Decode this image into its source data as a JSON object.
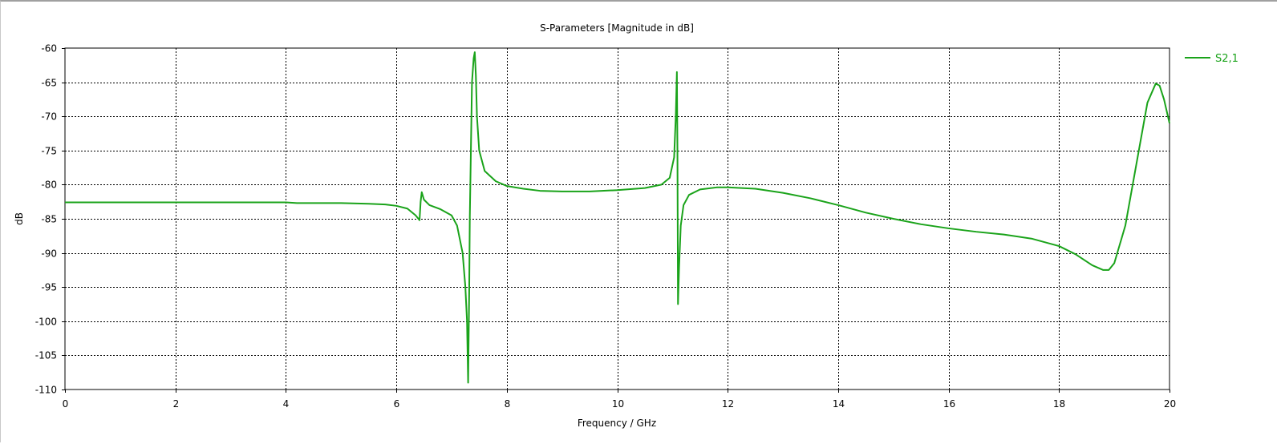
{
  "window": {
    "accent": "#1aa31a"
  },
  "chart_data": {
    "type": "line",
    "title": "S-Parameters [Magnitude in dB]",
    "xlabel": "Frequency / GHz",
    "ylabel": "dB",
    "xlim": [
      0,
      20
    ],
    "ylim": [
      -110,
      -60
    ],
    "xticks": [
      0,
      2,
      4,
      6,
      8,
      10,
      12,
      14,
      16,
      18,
      20
    ],
    "yticks": [
      -60,
      -65,
      -70,
      -75,
      -80,
      -85,
      -90,
      -95,
      -100,
      -105,
      -110
    ],
    "grid": true,
    "legend": {
      "position": "right"
    },
    "series": [
      {
        "name": "S2,1",
        "color": "#1aa31a",
        "x": [
          0,
          1,
          2,
          3,
          4,
          4.2,
          5,
          5.5,
          5.8,
          6.0,
          6.2,
          6.35,
          6.42,
          6.44,
          6.46,
          6.5,
          6.6,
          6.8,
          7.0,
          7.1,
          7.2,
          7.25,
          7.28,
          7.3,
          7.32,
          7.33,
          7.35,
          7.37,
          7.4,
          7.42,
          7.44,
          7.46,
          7.5,
          7.6,
          7.8,
          8.0,
          8.3,
          8.6,
          9.0,
          9.5,
          10.0,
          10.5,
          10.8,
          10.95,
          11.03,
          11.06,
          11.08,
          11.09,
          11.1,
          11.12,
          11.15,
          11.2,
          11.3,
          11.5,
          11.8,
          12.0,
          12.5,
          13.0,
          13.5,
          14.0,
          14.5,
          15.0,
          15.5,
          16.0,
          16.5,
          17.0,
          17.5,
          18.0,
          18.3,
          18.6,
          18.8,
          18.9,
          19.0,
          19.2,
          19.4,
          19.6,
          19.75,
          19.82,
          19.9,
          20.0
        ],
        "values": [
          -82.6,
          -82.6,
          -82.6,
          -82.6,
          -82.6,
          -82.7,
          -82.7,
          -82.8,
          -82.9,
          -83.1,
          -83.5,
          -84.5,
          -85.2,
          -82.5,
          -81.1,
          -82.2,
          -83.0,
          -83.6,
          -84.5,
          -86.0,
          -90.0,
          -95.0,
          -100.0,
          -109.0,
          -95.0,
          -85.0,
          -75.0,
          -65.0,
          -61.5,
          -60.6,
          -64.0,
          -70.0,
          -75.0,
          -78.0,
          -79.5,
          -80.2,
          -80.6,
          -80.9,
          -81.0,
          -81.0,
          -80.8,
          -80.5,
          -80.0,
          -79.0,
          -76.0,
          -70.0,
          -63.5,
          -75.0,
          -97.5,
          -92.0,
          -86.0,
          -83.0,
          -81.5,
          -80.7,
          -80.4,
          -80.4,
          -80.6,
          -81.2,
          -82.0,
          -83.0,
          -84.1,
          -85.0,
          -85.8,
          -86.4,
          -86.9,
          -87.3,
          -87.9,
          -89.0,
          -90.2,
          -91.8,
          -92.5,
          -92.5,
          -91.5,
          -86.0,
          -77.0,
          -68.0,
          -65.2,
          -65.5,
          -67.5,
          -71.0
        ]
      }
    ]
  }
}
